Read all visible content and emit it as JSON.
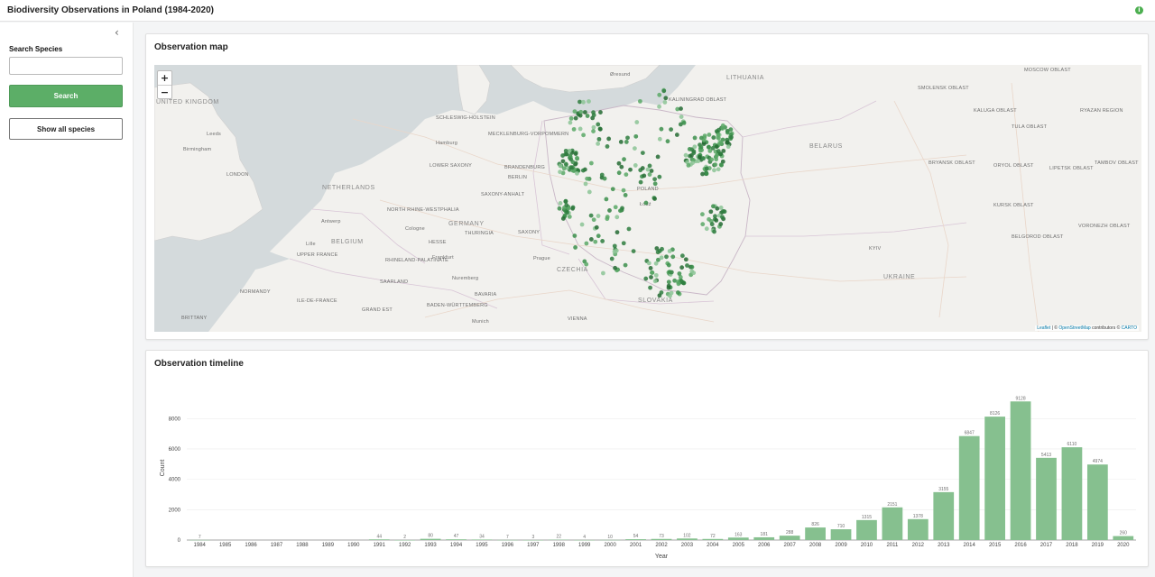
{
  "header": {
    "title": "Biodiversity Observations in Poland (1984-2020)",
    "info_icon": "i"
  },
  "sidebar": {
    "collapse_icon": "‹",
    "search_label": "Search Species",
    "search_value": "",
    "search_placeholder": "",
    "search_button": "Search",
    "show_all_button": "Show all species",
    "accent_color": "#5cae67"
  },
  "map": {
    "title": "Observation map",
    "zoom_in": "+",
    "zoom_out": "−",
    "attribution": {
      "leaflet": "Leaflet",
      "sep": " | © ",
      "osm": "OpenStreetMap",
      "contributors": " contributors © ",
      "carto": "CARTO"
    },
    "labels": {
      "uk": "UNITED KINGDOM",
      "netherlands": "NETHERLANDS",
      "belgium": "BELGIUM",
      "germany": "GERMANY",
      "czechia": "CZECHIA",
      "slovakia": "SLOVAKIA",
      "belarus": "BELARUS",
      "ukraine": "UKRAINE",
      "lithuania": "LITHUANIA",
      "poland": "POLAND",
      "kaliningrad": "KALININGRAD OBLAST",
      "schleswig": "SCHLESWIG-HOLSTEIN",
      "mecklenburg": "MECKLENBURG-VORPOMMERN",
      "lower_saxony": "LOWER SAXONY",
      "brandenburg": "BRANDENBURG",
      "saxony_anhalt": "SAXONY-ANHALT",
      "saxony": "SAXONY",
      "thuringia": "THURINGIA",
      "hesse": "HESSE",
      "nrw": "NORTH RHINE-WESTPHALIA",
      "rhineland": "RHINELAND-PALATINATE",
      "saarland": "SAARLAND",
      "bavaria": "BAVARIA",
      "baden": "BADEN-WÜRTTEMBERG",
      "grand_est": "GRAND EST",
      "normandy": "NORMANDY",
      "ile_de_france": "ILE-DE-FRANCE",
      "brittany": "BRITTANY",
      "upper_france": "UPPER FRANCE",
      "smolensk": "SMOLENSK OBLAST",
      "moscow": "MOSCOW OBLAST",
      "kaluga": "KALUGA OBLAST",
      "tula": "TULA OBLAST",
      "ryazan": "RYAZAN REGION",
      "bryansk": "BRYANSK OBLAST",
      "oryol": "ORYOL OBLAST",
      "lipetsk": "LIPETSK OBLAST",
      "tambov": "TAMBOV OBLAST",
      "kursk": "KURSK OBLAST",
      "voronezh": "VORONEZH OBLAST",
      "belgorod": "BELGOROD OBLAST",
      "berlin": "BERLIN",
      "hamburg": "Hamburg",
      "vienna": "VIENNA",
      "london": "LONDON",
      "kyiv": "KYIV",
      "lodz": "Łódź",
      "prague": "Prague",
      "munich": "Munich",
      "nuremberg": "Nuremberg",
      "frankfurt": "Frankfurt",
      "cologne": "Cologne",
      "birmingham": "Birmingham",
      "leeds": "Leeds",
      "antwerp": "Antwerp",
      "lille": "Lille",
      "oresund": "Øresund"
    }
  },
  "chart": {
    "title": "Observation timeline",
    "bar_color": "#86c08f"
  },
  "chart_data": {
    "type": "bar",
    "title": "Observation timeline",
    "xlabel": "Year",
    "ylabel": "Count",
    "ylim": [
      0,
      9500
    ],
    "yticks": [
      0,
      2000,
      4000,
      6000,
      8000
    ],
    "grid": true,
    "categories": [
      "1984",
      "1985",
      "1986",
      "1987",
      "1988",
      "1989",
      "1990",
      "1991",
      "1992",
      "1993",
      "1994",
      "1995",
      "1996",
      "1997",
      "1998",
      "1999",
      "2000",
      "2001",
      "2002",
      "2003",
      "2004",
      "2005",
      "2006",
      "2007",
      "2008",
      "2009",
      "2010",
      "2011",
      "2012",
      "2013",
      "2014",
      "2015",
      "2016",
      "2017",
      "2018",
      "2019",
      "2020"
    ],
    "values": [
      7,
      null,
      null,
      null,
      null,
      null,
      null,
      44,
      2,
      80,
      47,
      34,
      7,
      3,
      22,
      4,
      10,
      54,
      73,
      102,
      72,
      163,
      181,
      288,
      826,
      710,
      1315,
      2151,
      1378,
      3155,
      6847,
      8126,
      9128,
      5413,
      6110,
      4974,
      260
    ]
  }
}
